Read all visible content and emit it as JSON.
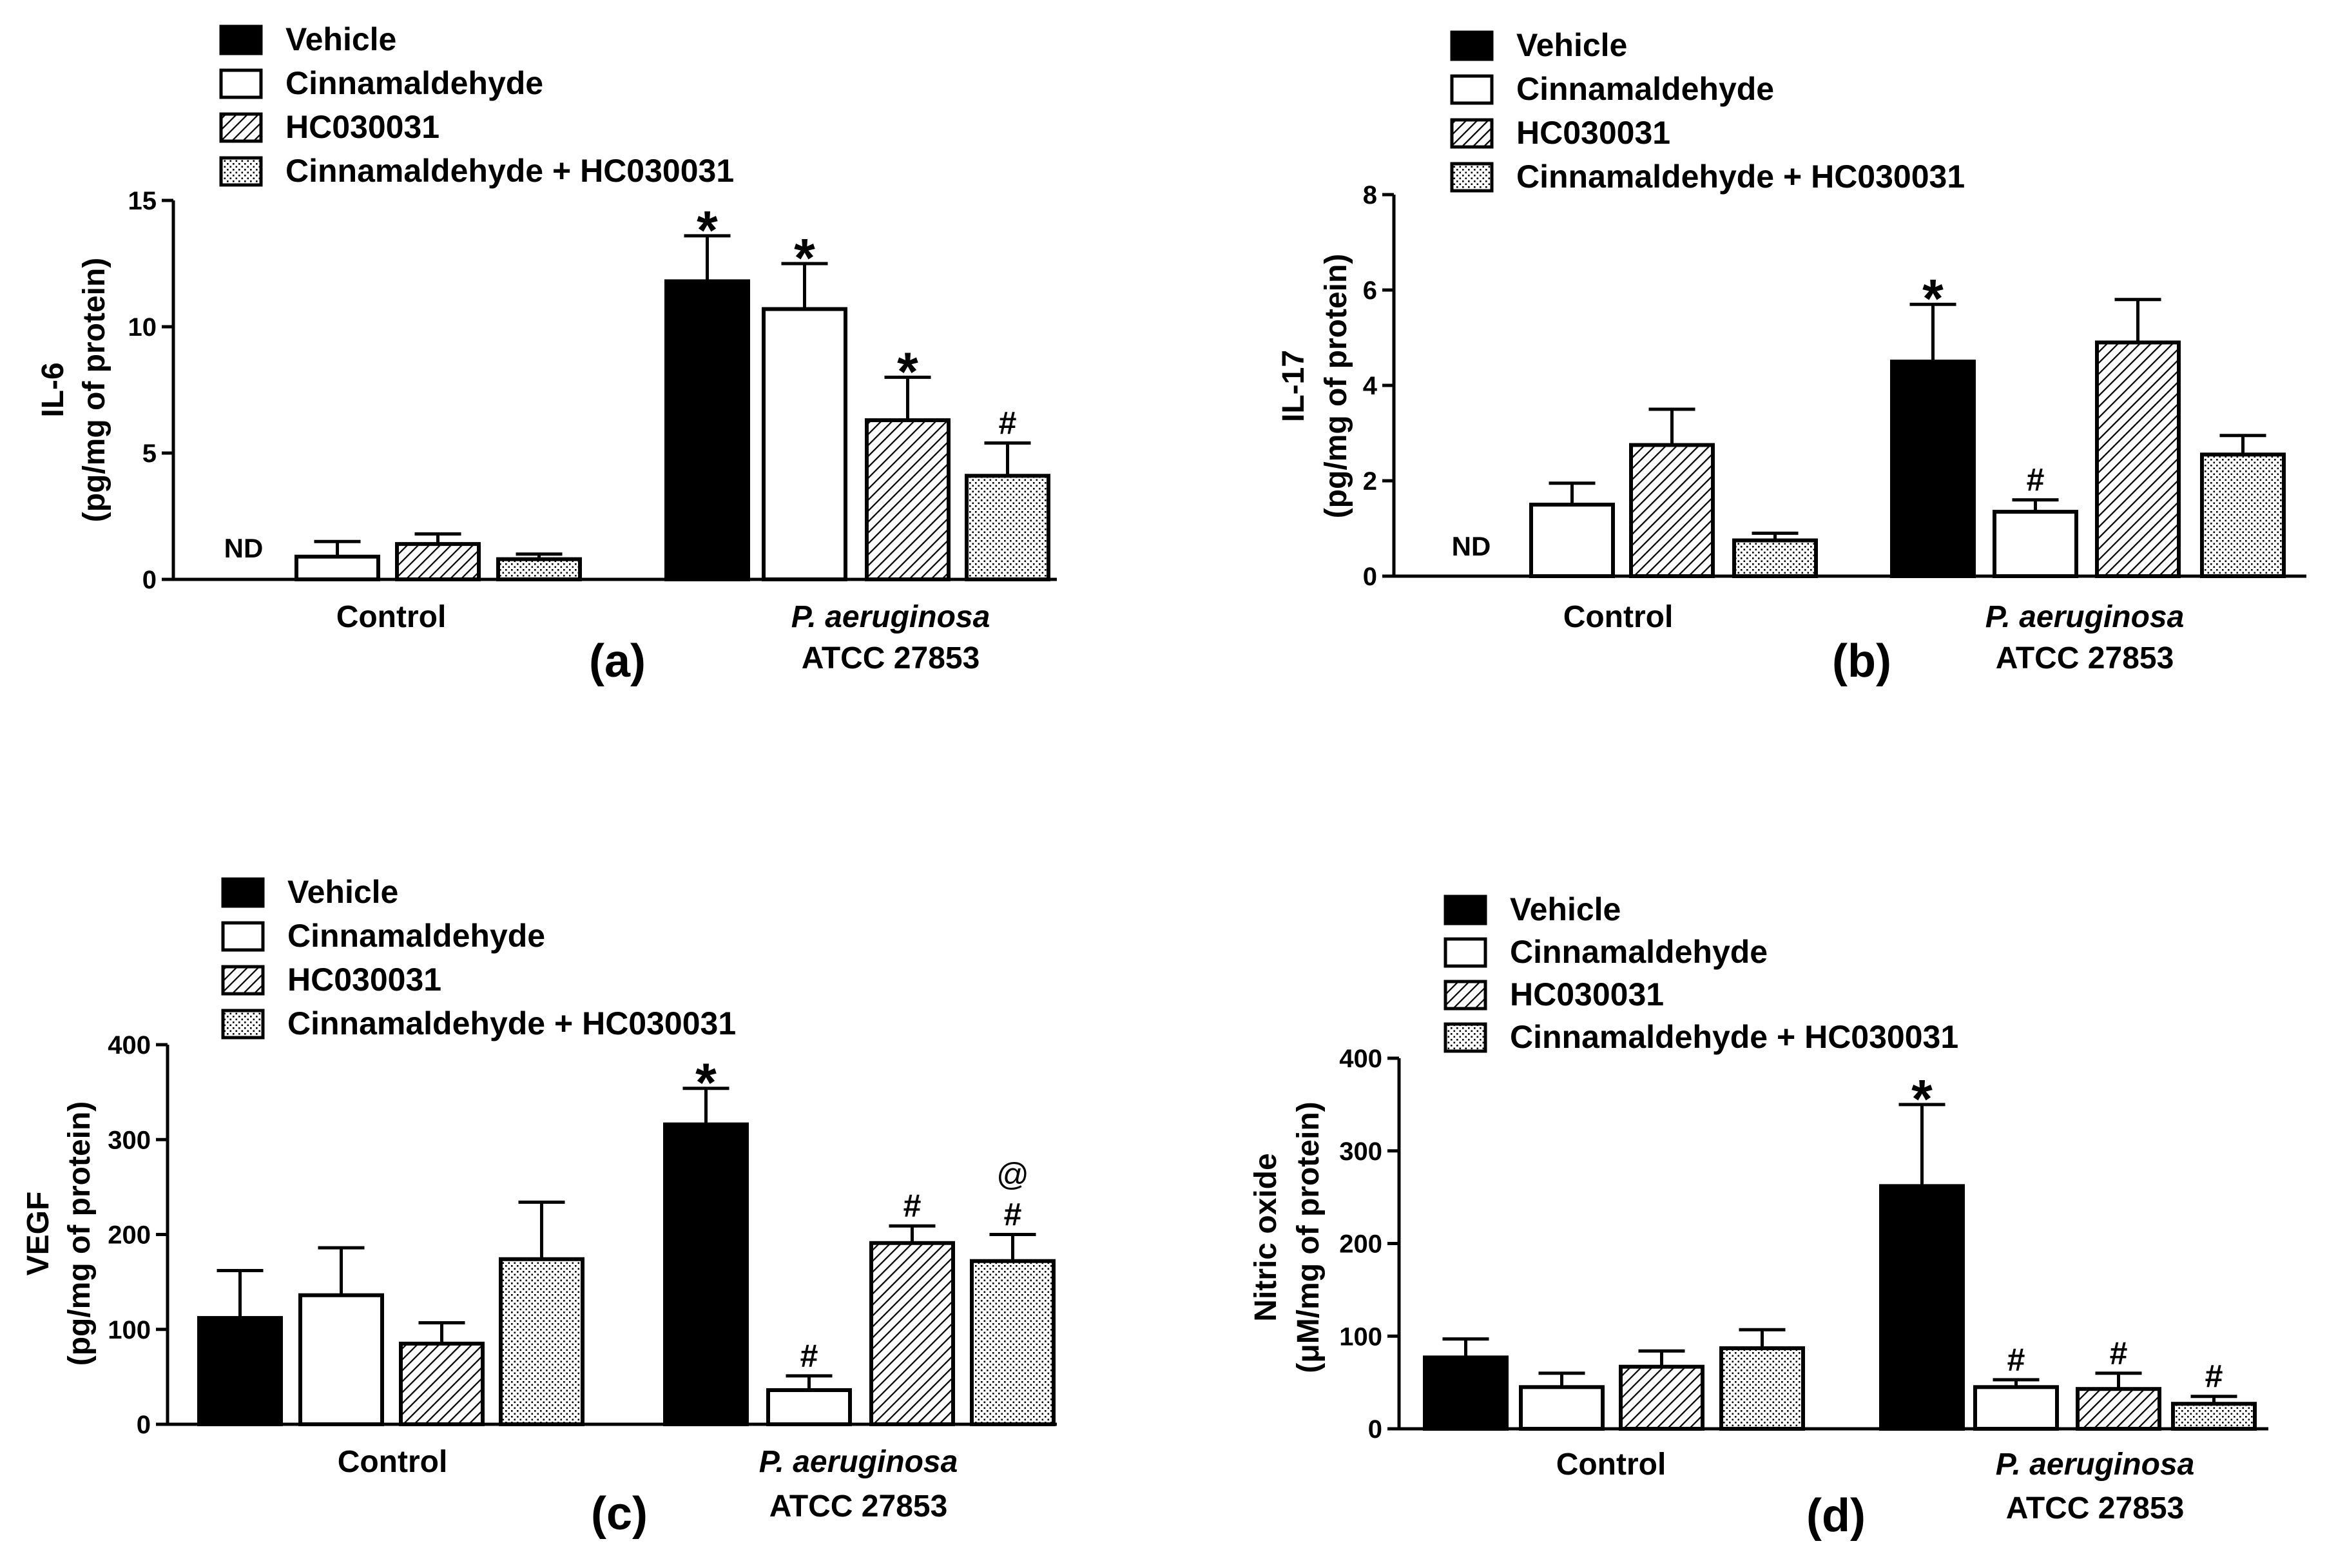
{
  "figure": {
    "legend_entries": [
      "Vehicle",
      "Cinnamaldehyde",
      "HC030031",
      "Cinnamaldehyde + HC030031"
    ],
    "colors": {
      "ink": "#000000",
      "vehicle_fill": "#000000",
      "cinnamaldehyde_fill": "#ffffff",
      "paper": "#ffffff"
    },
    "patterns": [
      "solid-black",
      "open-white",
      "diagonal-hatch",
      "stipple-dots"
    ]
  },
  "chart_data": [
    {
      "type": "bar",
      "panel_label": "(a)",
      "ylabel_line1": "IL-6",
      "ylabel_line2": "(pg/mg of protein)",
      "ylim": [
        0,
        15
      ],
      "yticks": [
        0,
        5,
        10,
        15
      ],
      "group_labels": [
        [
          "Control"
        ],
        [
          "P. aeruginosa",
          "ATCC 27853"
        ]
      ],
      "series": [
        {
          "name": "Vehicle",
          "values": [
            null,
            11.8
          ],
          "errors": [
            null,
            1.8
          ],
          "marks": [
            "ND",
            "*"
          ]
        },
        {
          "name": "Cinnamaldehyde",
          "values": [
            0.9,
            10.7
          ],
          "errors": [
            0.6,
            1.8
          ],
          "marks": [
            "",
            "*"
          ]
        },
        {
          "name": "HC030031",
          "values": [
            1.4,
            6.3
          ],
          "errors": [
            0.4,
            1.7
          ],
          "marks": [
            "",
            "*"
          ]
        },
        {
          "name": "Cinnamaldehyde + HC030031",
          "values": [
            0.8,
            4.1
          ],
          "errors": [
            0.2,
            1.3
          ],
          "marks": [
            "",
            "#"
          ]
        }
      ]
    },
    {
      "type": "bar",
      "panel_label": "(b)",
      "ylabel_line1": "IL-17",
      "ylabel_line2": "(pg/mg of protein)",
      "ylim": [
        0,
        8
      ],
      "yticks": [
        0,
        2,
        4,
        6,
        8
      ],
      "group_labels": [
        [
          "Control"
        ],
        [
          "P. aeruginosa",
          "ATCC 27853"
        ]
      ],
      "series": [
        {
          "name": "Vehicle",
          "values": [
            null,
            4.5
          ],
          "errors": [
            null,
            1.2
          ],
          "marks": [
            "ND",
            "*"
          ]
        },
        {
          "name": "Cinnamaldehyde",
          "values": [
            1.5,
            1.35
          ],
          "errors": [
            0.45,
            0.25
          ],
          "marks": [
            "",
            "#"
          ]
        },
        {
          "name": "HC030031",
          "values": [
            2.75,
            4.9
          ],
          "errors": [
            0.75,
            0.9
          ],
          "marks": [
            "",
            ""
          ]
        },
        {
          "name": "Cinnamaldehyde + HC030031",
          "values": [
            0.75,
            2.55
          ],
          "errors": [
            0.15,
            0.4
          ],
          "marks": [
            "",
            ""
          ]
        }
      ]
    },
    {
      "type": "bar",
      "panel_label": "(c)",
      "ylabel_line1": "VEGF",
      "ylabel_line2": "(pg/mg of protein)",
      "ylim": [
        0,
        400
      ],
      "yticks": [
        0,
        100,
        200,
        300,
        400
      ],
      "group_labels": [
        [
          "Control"
        ],
        [
          "P. aeruginosa",
          "ATCC 27853"
        ]
      ],
      "series": [
        {
          "name": "Vehicle",
          "values": [
            112,
            316
          ],
          "errors": [
            50,
            38
          ],
          "marks": [
            "",
            "*"
          ]
        },
        {
          "name": "Cinnamaldehyde",
          "values": [
            136,
            36
          ],
          "errors": [
            50,
            15
          ],
          "marks": [
            "",
            "#"
          ]
        },
        {
          "name": "HC030031",
          "values": [
            85,
            191
          ],
          "errors": [
            22,
            18
          ],
          "marks": [
            "",
            "#"
          ]
        },
        {
          "name": "Cinnamaldehyde + HC030031",
          "values": [
            174,
            172
          ],
          "errors": [
            60,
            28
          ],
          "marks": [
            "",
            "#@"
          ]
        }
      ]
    },
    {
      "type": "bar",
      "panel_label": "(d)",
      "ylabel_line1": "Nitric oxide",
      "ylabel_line2": "(μM/mg of protein)",
      "ylim": [
        0,
        400
      ],
      "yticks": [
        0,
        100,
        200,
        300,
        400
      ],
      "group_labels": [
        [
          "Control"
        ],
        [
          "P. aeruginosa",
          "ATCC 27853"
        ]
      ],
      "series": [
        {
          "name": "Vehicle",
          "values": [
            77,
            262
          ],
          "errors": [
            20,
            88
          ],
          "marks": [
            "",
            "*"
          ]
        },
        {
          "name": "Cinnamaldehyde",
          "values": [
            45,
            45
          ],
          "errors": [
            15,
            8
          ],
          "marks": [
            "",
            "#"
          ]
        },
        {
          "name": "HC030031",
          "values": [
            67,
            43
          ],
          "errors": [
            17,
            17
          ],
          "marks": [
            "",
            "#"
          ]
        },
        {
          "name": "Cinnamaldehyde + HC030031",
          "values": [
            87,
            27
          ],
          "errors": [
            20,
            8
          ],
          "marks": [
            "",
            "#"
          ]
        }
      ]
    }
  ]
}
